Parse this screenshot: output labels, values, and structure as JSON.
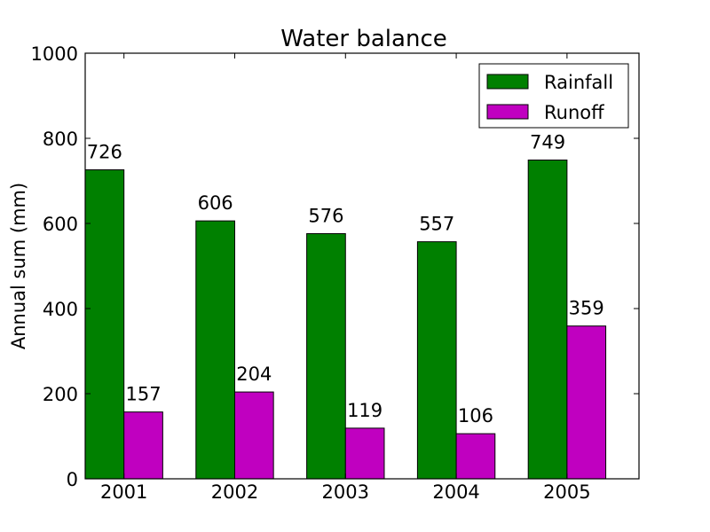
{
  "chart_data": {
    "type": "bar",
    "title": "Water balance",
    "xlabel": "",
    "ylabel": "Annual sum (mm)",
    "ylim": [
      0,
      1000
    ],
    "yticks": [
      0,
      200,
      400,
      600,
      800,
      1000
    ],
    "categories": [
      "2001",
      "2002",
      "2003",
      "2004",
      "2005"
    ],
    "series": [
      {
        "name": "Rainfall",
        "color": "#008000",
        "values": [
          726,
          606,
          576,
          557,
          749
        ]
      },
      {
        "name": "Runoff",
        "color": "#c000c0",
        "values": [
          157,
          204,
          119,
          106,
          359
        ]
      }
    ],
    "legend": "top-right",
    "grid": false
  }
}
